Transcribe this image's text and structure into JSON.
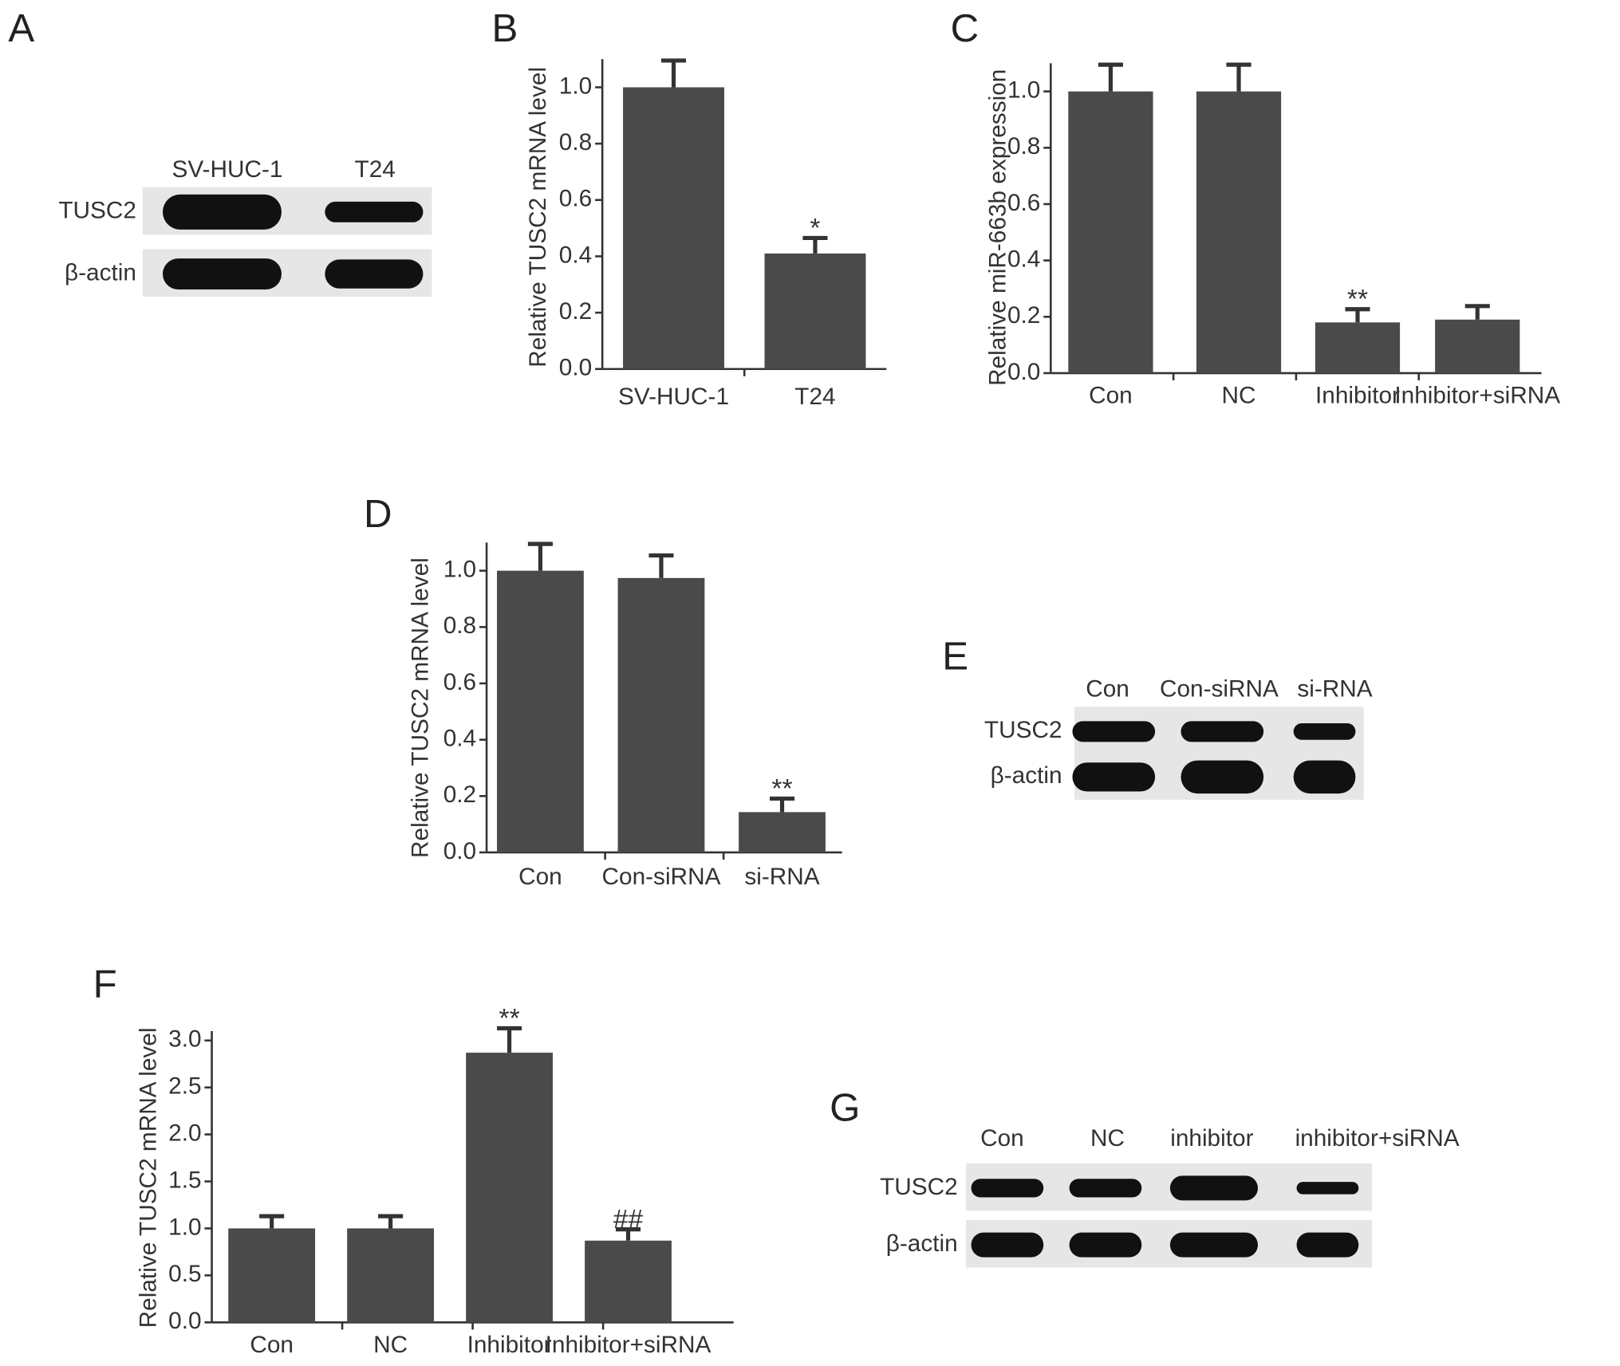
{
  "chart_data": [
    {
      "type": "blot",
      "panel": "A",
      "lanes": [
        "SV-HUC-1",
        "T24"
      ],
      "rows": [
        "TUSC2",
        "β-actin"
      ]
    },
    {
      "type": "bar",
      "panel": "B",
      "ylabel": "Relative TUSC2 mRNA level",
      "categories": [
        "SV-HUC-1",
        "T24"
      ],
      "values": [
        1.0,
        0.41
      ],
      "errors": [
        0.095,
        0.055
      ],
      "value_annotations": [
        null,
        "*"
      ],
      "color": "#4a4a4a",
      "ylim": [
        0,
        1.1
      ],
      "yticks": [
        {
          "value": 0,
          "label": "0.0"
        },
        0.2,
        0.4,
        0.6,
        0.8,
        {
          "value": 1,
          "label": "1.0"
        }
      ]
    },
    {
      "type": "bar",
      "panel": "C",
      "ylabel": "Relative miR-663b expression",
      "categories": [
        "Con",
        "NC",
        "Inhibitor",
        "Inhibitor+siRNA"
      ],
      "values": [
        1.0,
        1.0,
        0.18,
        0.19
      ],
      "errors": [
        0.095,
        0.095,
        0.047,
        0.048
      ],
      "value_annotations": [
        null,
        null,
        "**",
        null
      ],
      "color": "#4a4a4a",
      "ylim": [
        0,
        1.1
      ],
      "yticks": [
        {
          "value": 0,
          "label": "0.0"
        },
        0.2,
        0.4,
        0.6,
        0.8,
        {
          "value": 1,
          "label": "1.0"
        }
      ]
    },
    {
      "type": "bar",
      "panel": "D",
      "ylabel": "Relative TUSC2 mRNA level",
      "categories": [
        "Con",
        "Con-siRNA",
        "si-RNA"
      ],
      "values": [
        1.0,
        0.974,
        0.143
      ],
      "errors": [
        0.095,
        0.08,
        0.048
      ],
      "value_annotations": [
        null,
        null,
        "**"
      ],
      "color": "#4a4a4a",
      "ylim": [
        0,
        1.1
      ],
      "yticks": [
        {
          "value": 0,
          "label": "0.0"
        },
        0.2,
        0.4,
        0.6,
        0.8,
        {
          "value": 1,
          "label": "1.0"
        }
      ]
    },
    {
      "type": "blot",
      "panel": "E",
      "lanes": [
        "Con",
        "Con-siRNA",
        "si-RNA"
      ],
      "rows": [
        "TUSC2",
        "β-actin"
      ]
    },
    {
      "type": "bar",
      "panel": "F",
      "ylabel": "Relative TUSC2 mRNA level",
      "categories": [
        "Con",
        "NC",
        "Inhibitor",
        "Inhibitor+siRNA"
      ],
      "values": [
        1.0,
        1.0,
        2.87,
        0.87
      ],
      "errors": [
        0.13,
        0.13,
        0.26,
        0.12
      ],
      "value_annotations": [
        null,
        null,
        "**",
        "##"
      ],
      "color": "#4a4a4a",
      "ylim": [
        0,
        3.1
      ],
      "yticks": [
        {
          "value": 0,
          "label": "0.0"
        },
        0.5,
        {
          "value": 1,
          "label": "1.0"
        },
        1.5,
        {
          "value": 2,
          "label": "2.0"
        },
        2.5,
        {
          "value": 3,
          "label": "3.0"
        }
      ]
    },
    {
      "type": "blot",
      "panel": "G",
      "lanes": [
        "Con",
        "NC",
        "inhibitor",
        "inhibitor+siRNA"
      ],
      "rows": [
        "TUSC2",
        "β-actin"
      ]
    }
  ]
}
